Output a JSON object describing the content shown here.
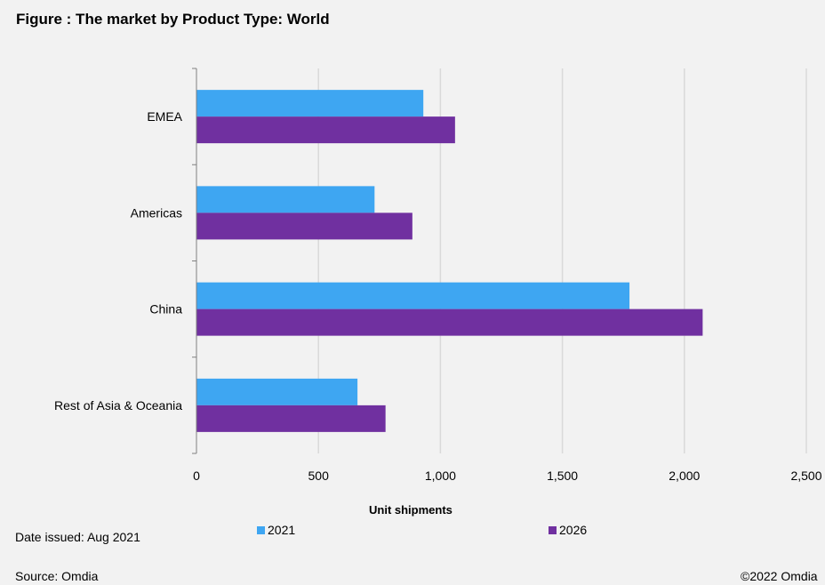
{
  "title": "Figure : The market by Product  Type: World",
  "footer": {
    "date_issued": "Date issued: Aug 2021",
    "source": "Source:  Omdia",
    "copyright": "©2022 Omdia"
  },
  "colors": {
    "background": "#f2f2f2",
    "series_2021": "#3ea6f2",
    "series_2026": "#7030a0",
    "gridline": "#d9d9d9",
    "axis": "#808080"
  },
  "chart_data": {
    "type": "bar",
    "orientation": "horizontal",
    "categories": [
      "EMEA",
      "Americas",
      "China",
      "Rest of Asia & Oceania"
    ],
    "series": [
      {
        "name": "2021",
        "values": [
          930,
          730,
          1775,
          660
        ]
      },
      {
        "name": "2026",
        "values": [
          1060,
          885,
          2075,
          775
        ]
      }
    ],
    "xlabel": "Unit shipments",
    "ylabel": "",
    "xlim": [
      0,
      2500
    ],
    "x_ticks": [
      0,
      500,
      1000,
      1500,
      2000,
      2500
    ],
    "x_tick_labels": [
      "0",
      "500",
      "1,000",
      "1,500",
      "2,000",
      "2,500"
    ],
    "grid": true,
    "legend_position": "bottom"
  }
}
